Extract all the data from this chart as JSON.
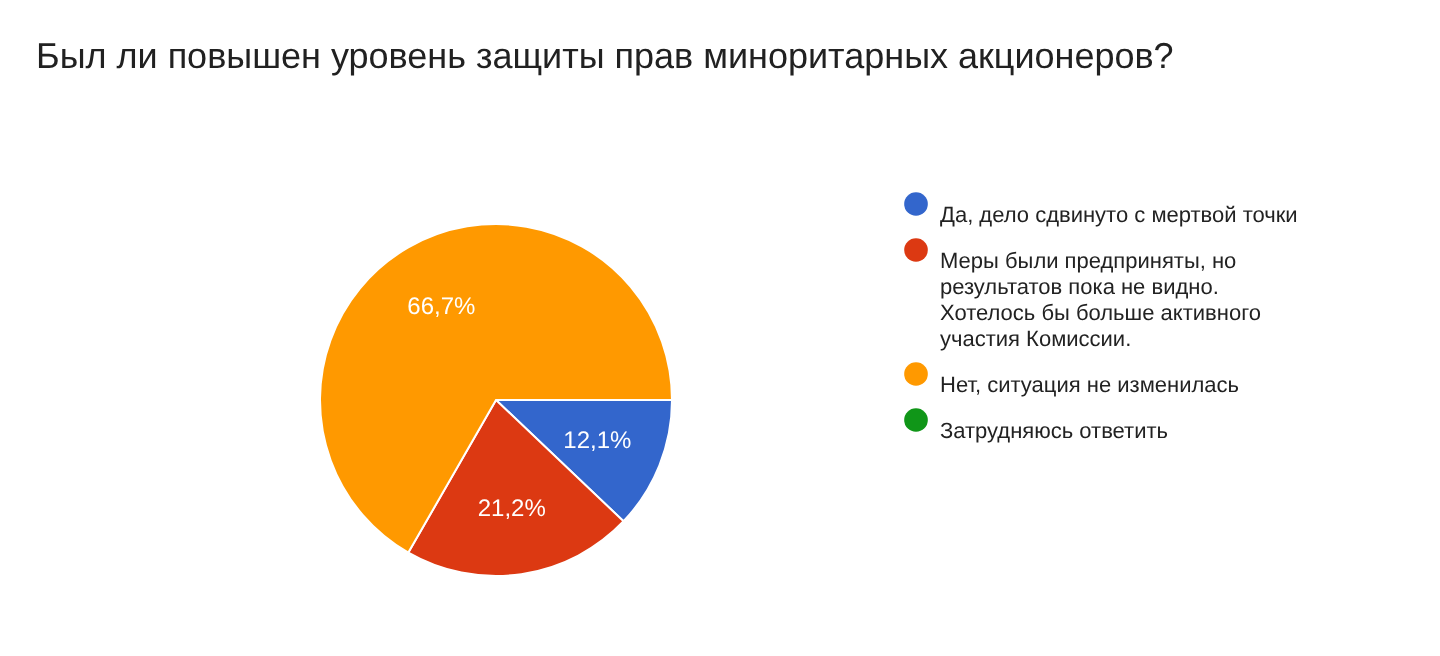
{
  "chart_data": {
    "type": "pie",
    "title": "Был ли повышен уровень защиты прав миноритарных акционеров?",
    "categories": [
      "Да, дело сдвинуто с мертвой точки",
      "Меры были предприняты, но результатов пока не видно. Хотелось бы больше активного участия Комиссии.",
      "Нет, ситуация не изменилась",
      "Затрудняюсь ответить"
    ],
    "values": [
      12.1,
      21.2,
      66.7,
      0
    ],
    "colors": [
      "#3366cc",
      "#dc3912",
      "#ff9900",
      "#109618"
    ],
    "value_labels": [
      "12,1%",
      "21,2%",
      "66,7%",
      null
    ],
    "legend": "right"
  }
}
